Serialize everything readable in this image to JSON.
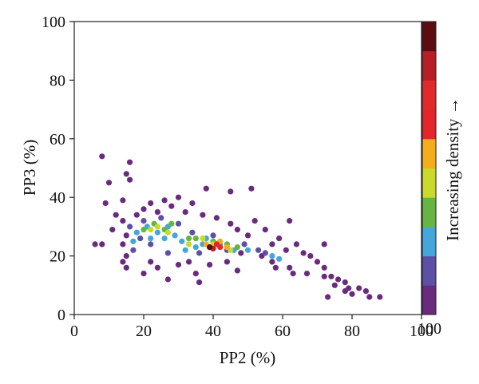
{
  "chart_data": {
    "type": "scatter",
    "title": "",
    "xlabel": "PP2 (%)",
    "ylabel": "PP3 (%)",
    "xlim": [
      0,
      100
    ],
    "ylim": [
      0,
      100
    ],
    "x_ticks": [
      "0",
      "20",
      "40",
      "60",
      "80",
      "100"
    ],
    "y_ticks": [
      "0",
      "20",
      "40",
      "60",
      "80",
      "100"
    ],
    "grid": false,
    "colorbar": {
      "label": "Increasing density →",
      "max_label": "100",
      "colors": [
        "#6a2a7e",
        "#5d4fa6",
        "#44a6db",
        "#66b543",
        "#c9da2b",
        "#f6ad1c",
        "#e4262a",
        "#e12b2b",
        "#b71f26",
        "#5c0d10"
      ]
    },
    "points": [
      {
        "x": 8,
        "y": 54,
        "d": 0
      },
      {
        "x": 16,
        "y": 52,
        "d": 0
      },
      {
        "x": 15,
        "y": 48,
        "d": 0
      },
      {
        "x": 16,
        "y": 46,
        "d": 0
      },
      {
        "x": 10,
        "y": 45,
        "d": 0
      },
      {
        "x": 38,
        "y": 43,
        "d": 0
      },
      {
        "x": 51,
        "y": 43,
        "d": 0
      },
      {
        "x": 45,
        "y": 42,
        "d": 0
      },
      {
        "x": 14,
        "y": 39,
        "d": 0
      },
      {
        "x": 9,
        "y": 38,
        "d": 0
      },
      {
        "x": 30,
        "y": 40,
        "d": 0
      },
      {
        "x": 22,
        "y": 38,
        "d": 0
      },
      {
        "x": 26,
        "y": 39,
        "d": 0
      },
      {
        "x": 34,
        "y": 38,
        "d": 0
      },
      {
        "x": 20,
        "y": 36,
        "d": 0
      },
      {
        "x": 28,
        "y": 37,
        "d": 0
      },
      {
        "x": 12,
        "y": 34,
        "d": 0
      },
      {
        "x": 18,
        "y": 34,
        "d": 0
      },
      {
        "x": 24,
        "y": 35,
        "d": 0
      },
      {
        "x": 32,
        "y": 35,
        "d": 0
      },
      {
        "x": 37,
        "y": 34,
        "d": 0
      },
      {
        "x": 41,
        "y": 33,
        "d": 0
      },
      {
        "x": 14,
        "y": 32,
        "d": 0
      },
      {
        "x": 45,
        "y": 31,
        "d": 0
      },
      {
        "x": 52,
        "y": 32,
        "d": 0
      },
      {
        "x": 62,
        "y": 32,
        "d": 0
      },
      {
        "x": 11,
        "y": 29,
        "d": 0
      },
      {
        "x": 47,
        "y": 29,
        "d": 0
      },
      {
        "x": 55,
        "y": 29,
        "d": 0
      },
      {
        "x": 15,
        "y": 27,
        "d": 0
      },
      {
        "x": 50,
        "y": 27,
        "d": 0
      },
      {
        "x": 59,
        "y": 26,
        "d": 0
      },
      {
        "x": 6,
        "y": 24,
        "d": 0
      },
      {
        "x": 8,
        "y": 24,
        "d": 0
      },
      {
        "x": 14,
        "y": 24,
        "d": 0
      },
      {
        "x": 57,
        "y": 24,
        "d": 0
      },
      {
        "x": 64,
        "y": 24,
        "d": 0
      },
      {
        "x": 72,
        "y": 24,
        "d": 0
      },
      {
        "x": 61,
        "y": 22,
        "d": 0
      },
      {
        "x": 66,
        "y": 21,
        "d": 0
      },
      {
        "x": 15,
        "y": 20,
        "d": 0
      },
      {
        "x": 48,
        "y": 21,
        "d": 0
      },
      {
        "x": 54,
        "y": 20,
        "d": 0
      },
      {
        "x": 68,
        "y": 20,
        "d": 0
      },
      {
        "x": 14,
        "y": 18,
        "d": 0
      },
      {
        "x": 22,
        "y": 18,
        "d": 0
      },
      {
        "x": 33,
        "y": 18,
        "d": 0
      },
      {
        "x": 44,
        "y": 18,
        "d": 0
      },
      {
        "x": 57,
        "y": 18,
        "d": 0
      },
      {
        "x": 70,
        "y": 18,
        "d": 0
      },
      {
        "x": 15,
        "y": 16,
        "d": 0
      },
      {
        "x": 24,
        "y": 16,
        "d": 0
      },
      {
        "x": 30,
        "y": 17,
        "d": 0
      },
      {
        "x": 39,
        "y": 17,
        "d": 0
      },
      {
        "x": 58,
        "y": 16,
        "d": 0
      },
      {
        "x": 62,
        "y": 16,
        "d": 0
      },
      {
        "x": 72,
        "y": 16,
        "d": 0
      },
      {
        "x": 20,
        "y": 14,
        "d": 0
      },
      {
        "x": 35,
        "y": 14,
        "d": 0
      },
      {
        "x": 47,
        "y": 15,
        "d": 0
      },
      {
        "x": 63,
        "y": 14,
        "d": 0
      },
      {
        "x": 67,
        "y": 14,
        "d": 0
      },
      {
        "x": 72,
        "y": 13,
        "d": 0
      },
      {
        "x": 74,
        "y": 13,
        "d": 0
      },
      {
        "x": 27,
        "y": 12,
        "d": 0
      },
      {
        "x": 36,
        "y": 11,
        "d": 0
      },
      {
        "x": 76,
        "y": 12,
        "d": 0
      },
      {
        "x": 78,
        "y": 11,
        "d": 0
      },
      {
        "x": 75,
        "y": 10,
        "d": 0
      },
      {
        "x": 79,
        "y": 9,
        "d": 0
      },
      {
        "x": 82,
        "y": 9,
        "d": 0
      },
      {
        "x": 84,
        "y": 8,
        "d": 0
      },
      {
        "x": 78,
        "y": 8,
        "d": 0
      },
      {
        "x": 80,
        "y": 7,
        "d": 0
      },
      {
        "x": 73,
        "y": 6,
        "d": 0
      },
      {
        "x": 85,
        "y": 6,
        "d": 0
      },
      {
        "x": 88,
        "y": 6,
        "d": 0
      },
      {
        "x": 16,
        "y": 30,
        "d": 1
      },
      {
        "x": 20,
        "y": 32,
        "d": 1
      },
      {
        "x": 25,
        "y": 33,
        "d": 1
      },
      {
        "x": 30,
        "y": 31,
        "d": 1
      },
      {
        "x": 19,
        "y": 26,
        "d": 1
      },
      {
        "x": 34,
        "y": 28,
        "d": 1
      },
      {
        "x": 40,
        "y": 27,
        "d": 1
      },
      {
        "x": 17,
        "y": 22,
        "d": 1
      },
      {
        "x": 27,
        "y": 21,
        "d": 1
      },
      {
        "x": 44,
        "y": 22,
        "d": 1
      },
      {
        "x": 49,
        "y": 24,
        "d": 1
      },
      {
        "x": 53,
        "y": 22,
        "d": 1
      },
      {
        "x": 55,
        "y": 21,
        "d": 1
      },
      {
        "x": 22,
        "y": 24,
        "d": 1
      },
      {
        "x": 36,
        "y": 21,
        "d": 1
      },
      {
        "x": 18,
        "y": 28,
        "d": 2
      },
      {
        "x": 21,
        "y": 30,
        "d": 2
      },
      {
        "x": 24,
        "y": 28,
        "d": 2
      },
      {
        "x": 27,
        "y": 30,
        "d": 2
      },
      {
        "x": 29,
        "y": 27,
        "d": 2
      },
      {
        "x": 17,
        "y": 25,
        "d": 2
      },
      {
        "x": 22,
        "y": 26,
        "d": 2
      },
      {
        "x": 31,
        "y": 25,
        "d": 2
      },
      {
        "x": 35,
        "y": 23,
        "d": 2
      },
      {
        "x": 38,
        "y": 26,
        "d": 2
      },
      {
        "x": 42,
        "y": 24,
        "d": 2
      },
      {
        "x": 46,
        "y": 22,
        "d": 2
      },
      {
        "x": 50,
        "y": 22,
        "d": 2
      },
      {
        "x": 57,
        "y": 20,
        "d": 2
      },
      {
        "x": 59,
        "y": 19,
        "d": 2
      },
      {
        "x": 32,
        "y": 22,
        "d": 2
      },
      {
        "x": 26,
        "y": 26,
        "d": 2
      },
      {
        "x": 37,
        "y": 24,
        "d": 2
      },
      {
        "x": 20,
        "y": 29,
        "d": 3
      },
      {
        "x": 23,
        "y": 31,
        "d": 3
      },
      {
        "x": 26,
        "y": 29,
        "d": 3
      },
      {
        "x": 28,
        "y": 31,
        "d": 3
      },
      {
        "x": 33,
        "y": 26,
        "d": 3
      },
      {
        "x": 35,
        "y": 26,
        "d": 3
      },
      {
        "x": 44,
        "y": 24,
        "d": 3
      },
      {
        "x": 47,
        "y": 23,
        "d": 3
      },
      {
        "x": 40,
        "y": 25,
        "d": 3
      },
      {
        "x": 22,
        "y": 29,
        "d": 4
      },
      {
        "x": 24,
        "y": 30,
        "d": 4
      },
      {
        "x": 27,
        "y": 28,
        "d": 4
      },
      {
        "x": 37,
        "y": 26,
        "d": 4
      },
      {
        "x": 40,
        "y": 24,
        "d": 4
      },
      {
        "x": 33,
        "y": 24,
        "d": 4
      },
      {
        "x": 45,
        "y": 22,
        "d": 4
      },
      {
        "x": 38,
        "y": 24,
        "d": 5
      },
      {
        "x": 42,
        "y": 25,
        "d": 5
      },
      {
        "x": 44,
        "y": 23,
        "d": 5
      },
      {
        "x": 39,
        "y": 23,
        "d": 6
      },
      {
        "x": 41,
        "y": 24,
        "d": 6
      },
      {
        "x": 42,
        "y": 23,
        "d": 7
      },
      {
        "x": 40,
        "y": 22.5,
        "d": 8
      },
      {
        "x": 39,
        "y": 23,
        "d": 9
      }
    ]
  }
}
